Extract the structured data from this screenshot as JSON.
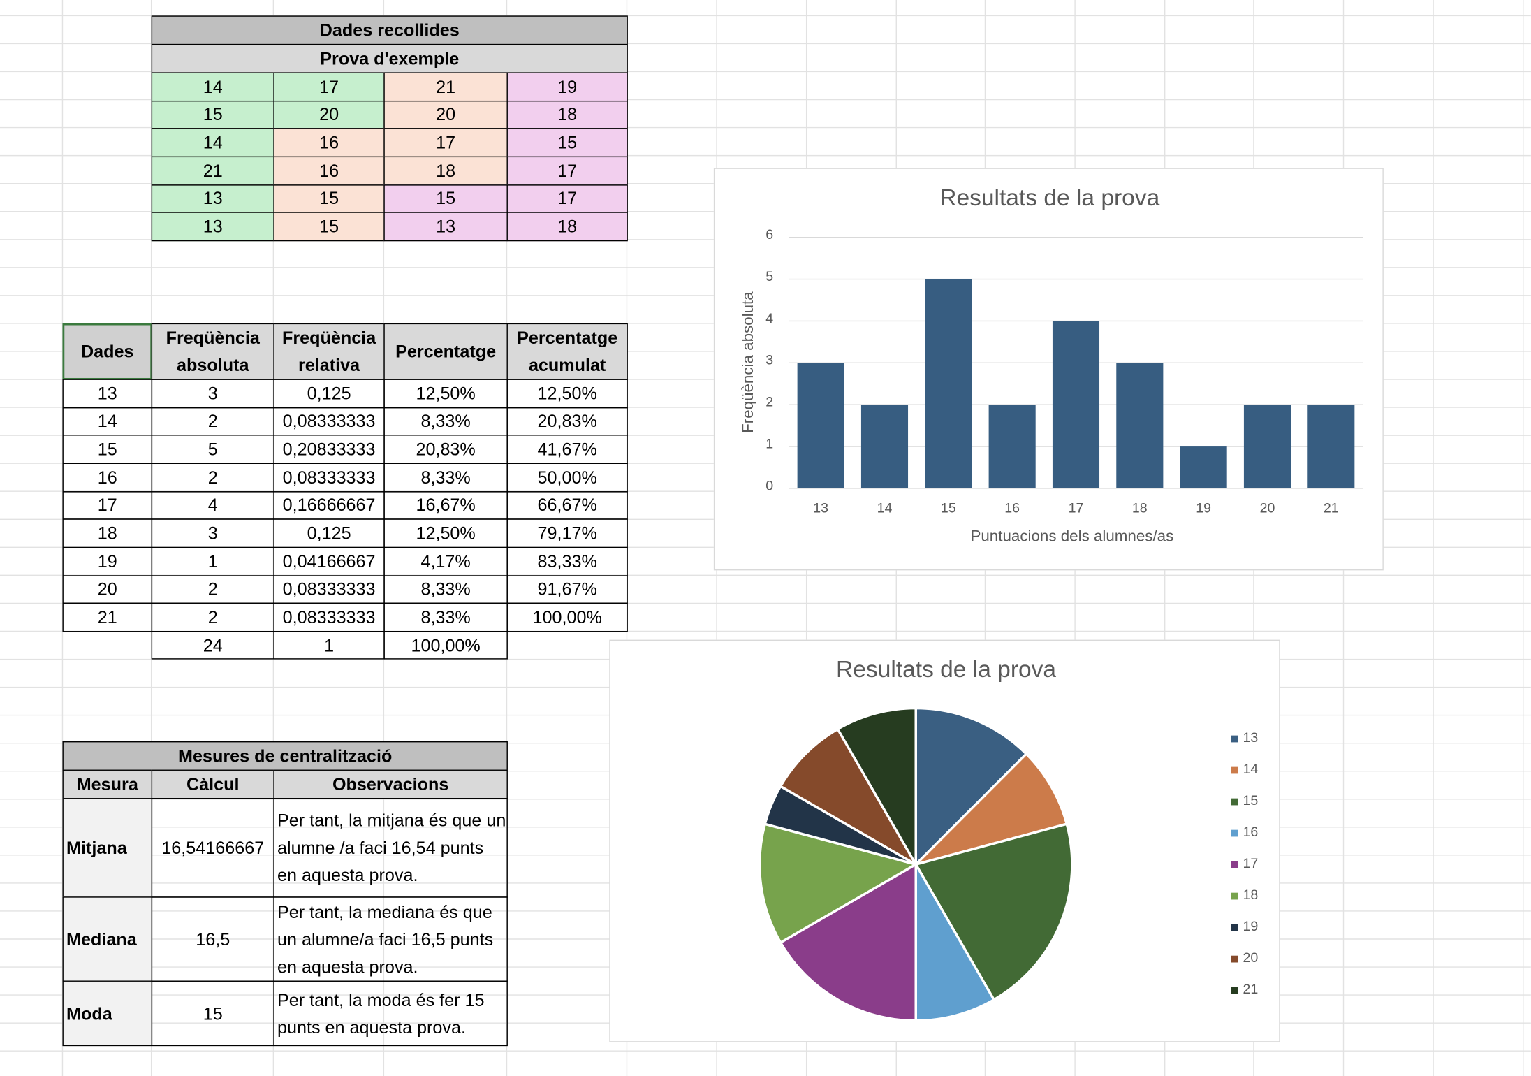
{
  "data_table": {
    "title": "Dades recollides",
    "subtitle": "Prova d'exemple",
    "rows": [
      [
        14,
        17,
        21,
        19
      ],
      [
        15,
        20,
        20,
        18
      ],
      [
        14,
        16,
        17,
        15
      ],
      [
        21,
        16,
        18,
        17
      ],
      [
        13,
        15,
        15,
        17
      ],
      [
        13,
        15,
        13,
        18
      ]
    ]
  },
  "freq_table": {
    "headers": [
      "Dades",
      "Freqüència absoluta",
      "Freqüència relativa",
      "Percentatge",
      "Percentatge acumulat"
    ],
    "rows": [
      [
        "13",
        "3",
        "0,125",
        "12,50%",
        "12,50%"
      ],
      [
        "14",
        "2",
        "0,08333333",
        "8,33%",
        "20,83%"
      ],
      [
        "15",
        "5",
        "0,20833333",
        "20,83%",
        "41,67%"
      ],
      [
        "16",
        "2",
        "0,08333333",
        "8,33%",
        "50,00%"
      ],
      [
        "17",
        "4",
        "0,16666667",
        "16,67%",
        "66,67%"
      ],
      [
        "18",
        "3",
        "0,125",
        "12,50%",
        "79,17%"
      ],
      [
        "19",
        "1",
        "0,04166667",
        "4,17%",
        "83,33%"
      ],
      [
        "20",
        "2",
        "0,08333333",
        "8,33%",
        "91,67%"
      ],
      [
        "21",
        "2",
        "0,08333333",
        "8,33%",
        "100,00%"
      ]
    ],
    "totals": [
      "24",
      "1",
      "100,00%"
    ]
  },
  "measures_table": {
    "title": "Mesures de centralització",
    "headers": [
      "Mesura",
      "Càlcul",
      "Observacions"
    ],
    "rows": [
      [
        "Mitjana",
        "16,54166667",
        "Per tant, la mitjana és que un alumne /a faci 16,54 punts en aquesta prova."
      ],
      [
        "Mediana",
        "16,5",
        "Per tant, la mediana és que un alumne/a faci 16,5 punts en aquesta prova."
      ],
      [
        "Moda",
        "15",
        "Per tant, la moda és fer 15 punts en aquesta prova."
      ]
    ]
  },
  "chart_data": [
    {
      "type": "bar",
      "title": "Resultats de la prova",
      "x_label": "Puntuacions dels alumnes/as",
      "y_label": "Freqüència absoluta",
      "categories": [
        "13",
        "14",
        "15",
        "16",
        "17",
        "18",
        "19",
        "20",
        "21"
      ],
      "values": [
        3,
        2,
        5,
        2,
        4,
        3,
        1,
        2,
        2
      ],
      "color": "#375d81",
      "ylim": [
        0,
        6
      ],
      "yticks": [
        0,
        1,
        2,
        3,
        4,
        5,
        6
      ],
      "grid": true
    },
    {
      "type": "pie",
      "title": "Resultats de la prova",
      "categories": [
        "13",
        "14",
        "15",
        "16",
        "17",
        "18",
        "19",
        "20",
        "21"
      ],
      "values": [
        3,
        2,
        5,
        2,
        4,
        3,
        1,
        2,
        2
      ],
      "colors": [
        "#3a5f82",
        "#cc7b4a",
        "#426a35",
        "#5f9fcf",
        "#8a3d8a",
        "#77a34c",
        "#223448",
        "#854a2b",
        "#263c20"
      ],
      "legend": "right"
    }
  ]
}
